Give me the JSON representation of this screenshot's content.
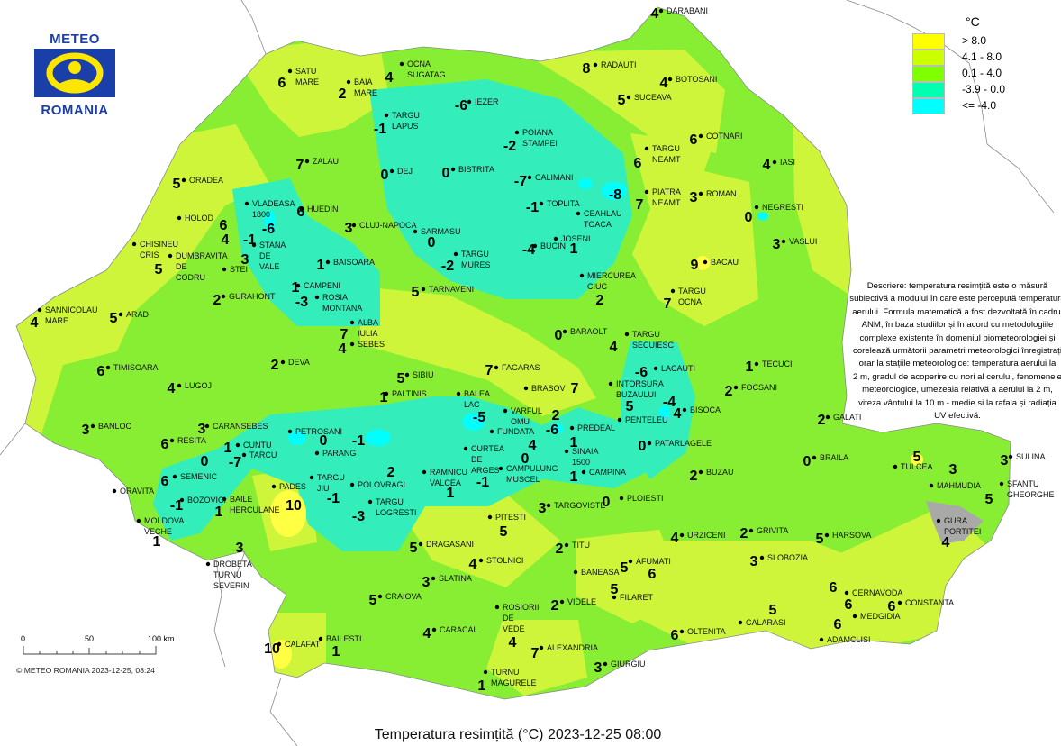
{
  "logo": {
    "top_text": "METEO",
    "bottom_text": "ROMANIA"
  },
  "legend": {
    "unit": "°C",
    "classes": [
      {
        "label": "> 8.0",
        "color": "#ffff00"
      },
      {
        "label": "4.1 - 8.0",
        "color": "#ccff00"
      },
      {
        "label": "0.1 - 4.0",
        "color": "#80ff00"
      },
      {
        "label": "-3.9 - 0.0",
        "color": "#00ffb0"
      },
      {
        "label": "<= -4.0",
        "color": "#00ffff"
      }
    ]
  },
  "description_lines": [
    "Descriere: temperatura resimțită este o măsură",
    "subiectivă a modului în care este percepută temperatura",
    "aerului. Formula matematică a fost dezvoltată în cadrul",
    "ANM, în baza studiilor și în acord cu metodologiile",
    "complexe existente în domeniul biometeorologiei și",
    "corelează următorii parametri meteorologici înregistrați",
    "orar la stațiile meteorologice: temperatura aerului la",
    "2 m, gradul de acoperire cu nori al cerului, fenomenele",
    "meteorologice, umezeala relativă a aerului la 2 m,",
    "viteza vântului la 10 m - medie si la rafala și radiația",
    "UV efectivă."
  ],
  "scale": {
    "ticks": [
      "0",
      "50",
      "100 km"
    ]
  },
  "copyright": "© METEO ROMANIA 2023-12-25, 08:24",
  "title": "Temperatura resimțită (°C) 2023-12-25 08:00",
  "stations": [
    {
      "name": [
        "DARABANI"
      ],
      "value": "4"
    },
    {
      "name": [
        "RADAUTI"
      ],
      "value": "8"
    },
    {
      "name": [
        "BOTOSANI"
      ],
      "value": "4"
    },
    {
      "name": [
        "SUCEAVA"
      ],
      "value": "5"
    },
    {
      "name": [
        "COTNARI"
      ],
      "value": "6"
    },
    {
      "name": [
        "IASI"
      ],
      "value": "4"
    },
    {
      "name": [
        "TARGU",
        "NEAMT"
      ],
      "value": "6"
    },
    {
      "name": [
        "PIATRA",
        "NEAMT"
      ],
      "value": "7"
    },
    {
      "name": [
        "ROMAN"
      ],
      "value": "3"
    },
    {
      "name": [
        "NEGRESTI"
      ],
      "value": "0"
    },
    {
      "name": [
        "VASLUI"
      ],
      "value": "3"
    },
    {
      "name": [
        "BACAU"
      ],
      "value": "9"
    },
    {
      "name": [
        "TARGU",
        "OCNA"
      ],
      "value": "7"
    },
    {
      "name": [
        "MIERCUREA",
        "CIUC"
      ],
      "value": "2"
    },
    {
      "name": [
        "BARAOLT"
      ],
      "value": "0"
    },
    {
      "name": [
        "TARGU",
        "SECUIESC"
      ],
      "value": "4"
    },
    {
      "name": [
        "TECUCI"
      ],
      "value": "1"
    },
    {
      "name": [
        "FOCSANI"
      ],
      "value": "2"
    },
    {
      "name": [
        "LACAUTI"
      ],
      "value": "-6"
    },
    {
      "name": [
        "INTORSURA",
        "BUZAULUI"
      ],
      "value": "5"
    },
    {
      "name": [
        "PENTELEU"
      ],
      "value": "-4"
    },
    {
      "name": [
        "BISOCA"
      ],
      "value": "4"
    },
    {
      "name": [
        "GALATI"
      ],
      "value": "2"
    },
    {
      "name": [
        "PATARLAGELE"
      ],
      "value": "0"
    },
    {
      "name": [
        "BRAILA"
      ],
      "value": "0"
    },
    {
      "name": [
        "TULCEA"
      ],
      "value": "5"
    },
    {
      "name": [
        "SULINA"
      ],
      "value": "3"
    },
    {
      "name": [
        "MAHMUDIA"
      ],
      "value": "3"
    },
    {
      "name": [
        "SFANTU",
        "GHEORGHE"
      ],
      "value": "5"
    },
    {
      "name": [
        "BUZAU"
      ],
      "value": "2"
    },
    {
      "name": [
        "GRIVITA"
      ],
      "value": "2"
    },
    {
      "name": [
        "URZICENI"
      ],
      "value": "4"
    },
    {
      "name": [
        "HARSOVA"
      ],
      "value": "5"
    },
    {
      "name": [
        "GURA",
        "PORTITEI"
      ],
      "value": "4"
    },
    {
      "name": [
        "SLOBOZIA"
      ],
      "value": "3"
    },
    {
      "name": [
        "CERNAVODA"
      ],
      "value": "6"
    },
    {
      "name": [
        "MEDGIDIA"
      ],
      "value": "6"
    },
    {
      "name": [
        "CONSTANTA"
      ],
      "value": "6"
    },
    {
      "name": [
        "CALARASI"
      ],
      "value": "5"
    },
    {
      "name": [
        "ADAMCLISI"
      ],
      "value": "6"
    },
    {
      "name": [
        "OLTENITA"
      ],
      "value": "6"
    },
    {
      "name": [
        "GIURGIU"
      ],
      "value": "3"
    },
    {
      "name": [
        "ALEXANDRIA"
      ],
      "value": "7"
    },
    {
      "name": [
        "TURNU",
        "MAGURELE"
      ],
      "value": "1"
    },
    {
      "name": [
        "ROSIORII",
        "DE",
        "VEDE"
      ],
      "value": "4"
    },
    {
      "name": [
        "VIDELE"
      ],
      "value": "2"
    },
    {
      "name": [
        "BANEASA"
      ],
      "value": "5"
    },
    {
      "name": [
        "AFUMATI"
      ],
      "value": "6"
    },
    {
      "name": [
        "FILARET"
      ],
      "value": "5"
    },
    {
      "name": [
        "TITU"
      ],
      "value": "2"
    },
    {
      "name": [
        "PLOIESTI"
      ],
      "value": "0"
    },
    {
      "name": [
        "TARGOVISTE"
      ],
      "value": "3"
    },
    {
      "name": [
        "CAMPINA"
      ],
      "value": "1"
    },
    {
      "name": [
        "SINAIA",
        "1500"
      ],
      "value": "1"
    },
    {
      "name": [
        "PREDEAL"
      ],
      "value": "2"
    },
    {
      "name": [
        "VARFUL",
        "OMU"
      ],
      "value": "-6"
    },
    {
      "name": [
        "FUNDATA"
      ],
      "value": "4"
    },
    {
      "name": [
        "BRASOV"
      ],
      "value": "7"
    },
    {
      "name": [
        "FAGARAS"
      ],
      "value": "7"
    },
    {
      "name": [
        "BALEA",
        "LAC"
      ],
      "value": "-5"
    },
    {
      "name": [
        "CAMPULUNG",
        "MUSCEL"
      ],
      "value": "0"
    },
    {
      "name": [
        "CURTEA",
        "DE",
        "ARGES"
      ],
      "value": "-1"
    },
    {
      "name": [
        "RAMNICU",
        "VALCEA"
      ],
      "value": "1"
    },
    {
      "name": [
        "PITESTI"
      ],
      "value": "5"
    },
    {
      "name": [
        "DRAGASANI"
      ],
      "value": "5"
    },
    {
      "name": [
        "STOLNICI"
      ],
      "value": "4"
    },
    {
      "name": [
        "SLATINA"
      ],
      "value": "3"
    },
    {
      "name": [
        "CARACAL"
      ],
      "value": "4"
    },
    {
      "name": [
        "CRAIOVA"
      ],
      "value": "5"
    },
    {
      "name": [
        "BAILESTI"
      ],
      "value": "1"
    },
    {
      "name": [
        "CALAFAT"
      ],
      "value": "10"
    },
    {
      "name": [
        "DROBETA",
        "TURNU",
        "SEVERIN"
      ],
      "value": "3"
    },
    {
      "name": [
        "BAILE",
        "HERCULANE"
      ],
      "value": "1"
    },
    {
      "name": [
        "PADES"
      ],
      "value": "10"
    },
    {
      "name": [
        "TARGU",
        "JIU"
      ],
      "value": "-1"
    },
    {
      "name": [
        "TARGU",
        "LOGRESTI"
      ],
      "value": "-3"
    },
    {
      "name": [
        "POLOVRAGI"
      ],
      "value": "2"
    },
    {
      "name": [
        "PETROSANI"
      ],
      "value": "0"
    },
    {
      "name": [
        "PARANG"
      ],
      "value": "-1"
    },
    {
      "name": [
        "CUNTU"
      ],
      "value": "1"
    },
    {
      "name": [
        "TARCU"
      ],
      "value": "-7"
    },
    {
      "name": [
        "CARANSEBES"
      ],
      "value": "3"
    },
    {
      "name": [
        "RESITA"
      ],
      "value": "6"
    },
    {
      "name": [
        "SEMENIC"
      ],
      "value": "0"
    },
    {
      "name": [
        "ORAVITA"
      ],
      "value": "6"
    },
    {
      "name": [
        "BOZOVICI"
      ],
      "value": "-1"
    },
    {
      "name": [
        "MOLDOVA",
        "VECHE"
      ],
      "value": "1"
    },
    {
      "name": [
        "BANLOC"
      ],
      "value": "3"
    },
    {
      "name": [
        "LUGOJ"
      ],
      "value": "4"
    },
    {
      "name": [
        "TIMISOARA"
      ],
      "value": "6"
    },
    {
      "name": [
        "ARAD"
      ],
      "value": "5"
    },
    {
      "name": [
        "SANNICOLAU",
        "MARE"
      ],
      "value": "4"
    },
    {
      "name": [
        "DEVA"
      ],
      "value": "2"
    },
    {
      "name": [
        "ALBA",
        "IULIA"
      ],
      "value": "7"
    },
    {
      "name": [
        "SEBES"
      ],
      "value": "4"
    },
    {
      "name": [
        "SIBIU"
      ],
      "value": "5"
    },
    {
      "name": [
        "PALTINIS"
      ],
      "value": "1"
    },
    {
      "name": [
        "TARNAVENI"
      ],
      "value": "5"
    },
    {
      "name": [
        "TARGU",
        "MURES"
      ],
      "value": "-2"
    },
    {
      "name": [
        "SARMASU"
      ],
      "value": "0"
    },
    {
      "name": [
        "BUCIN"
      ],
      "value": "-4"
    },
    {
      "name": [
        "JOSENI"
      ],
      "value": "1"
    },
    {
      "name": [
        "TOPLITA"
      ],
      "value": "-1"
    },
    {
      "name": [
        "CEAHLAU",
        "TOACA"
      ],
      "value": "-8"
    },
    {
      "name": [
        "CALIMANI"
      ],
      "value": "-7"
    },
    {
      "name": [
        "POIANA",
        "STAMPEI"
      ],
      "value": "-2"
    },
    {
      "name": [
        "IEZER"
      ],
      "value": "-6"
    },
    {
      "name": [
        "BISTRITA"
      ],
      "value": "0"
    },
    {
      "name": [
        "DEJ"
      ],
      "value": "0"
    },
    {
      "name": [
        "TARGU",
        "LAPUS"
      ],
      "value": "-1"
    },
    {
      "name": [
        "OCNA",
        "SUGATAG"
      ],
      "value": "4"
    },
    {
      "name": [
        "BAIA",
        "MARE"
      ],
      "value": "2"
    },
    {
      "name": [
        "SATU",
        "MARE"
      ],
      "value": "6"
    },
    {
      "name": [
        "ZALAU"
      ],
      "value": "7"
    },
    {
      "name": [
        "ORADEA"
      ],
      "value": "5"
    },
    {
      "name": [
        "HUEDIN"
      ],
      "value": "6"
    },
    {
      "name": [
        "CLUJ-NAPOCA"
      ],
      "value": "3"
    },
    {
      "name": [
        "VLADEASA",
        "1800"
      ],
      "value": "-6"
    },
    {
      "name": [
        "STANA",
        "DE",
        "VALE"
      ],
      "value": "-1"
    },
    {
      "name": [
        "HOLOD"
      ],
      "value": "6"
    },
    {
      "name": [
        "DUMBRAVITA",
        "DE",
        "CODRU"
      ],
      "value": "4"
    },
    {
      "name": [
        "STEI"
      ],
      "value": "3"
    },
    {
      "name": [
        "CHISINEU",
        "CRIS"
      ],
      "value": "5"
    },
    {
      "name": [
        "GURAHONT"
      ],
      "value": "2"
    },
    {
      "name": [
        "BAISOARA"
      ],
      "value": "1"
    },
    {
      "name": [
        "CAMPENI"
      ],
      "value": "1"
    },
    {
      "name": [
        "ROSIA",
        "MONTANA"
      ],
      "value": "-3"
    }
  ]
}
